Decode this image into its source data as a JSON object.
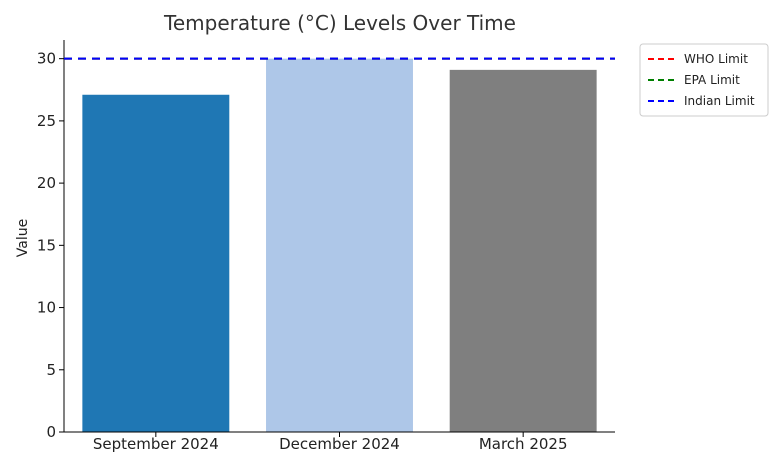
{
  "chart_data": {
    "type": "bar",
    "title": "Temperature (°C) Levels Over Time",
    "xlabel": "",
    "ylabel": "Value",
    "categories": [
      "September 2024",
      "December 2024",
      "March 2025"
    ],
    "values": [
      27.1,
      30,
      29.1
    ],
    "bar_colors": [
      "#1f77b4",
      "#aec7e8",
      "#7f7f7f"
    ],
    "ylim": [
      0,
      31.5
    ],
    "yticks": [
      0,
      5,
      10,
      15,
      20,
      25,
      30
    ],
    "grid": false,
    "reference_lines": [
      {
        "name": "WHO Limit",
        "value": 30,
        "color": "#ff0000",
        "style": "dashed"
      },
      {
        "name": "EPA Limit",
        "value": 30,
        "color": "#008000",
        "style": "dashed"
      },
      {
        "name": "Indian Limit",
        "value": 30,
        "color": "#0000ff",
        "style": "dashed"
      }
    ],
    "legend": {
      "position": "outside-top-right",
      "entries": [
        "WHO Limit",
        "EPA Limit",
        "Indian Limit"
      ]
    }
  }
}
